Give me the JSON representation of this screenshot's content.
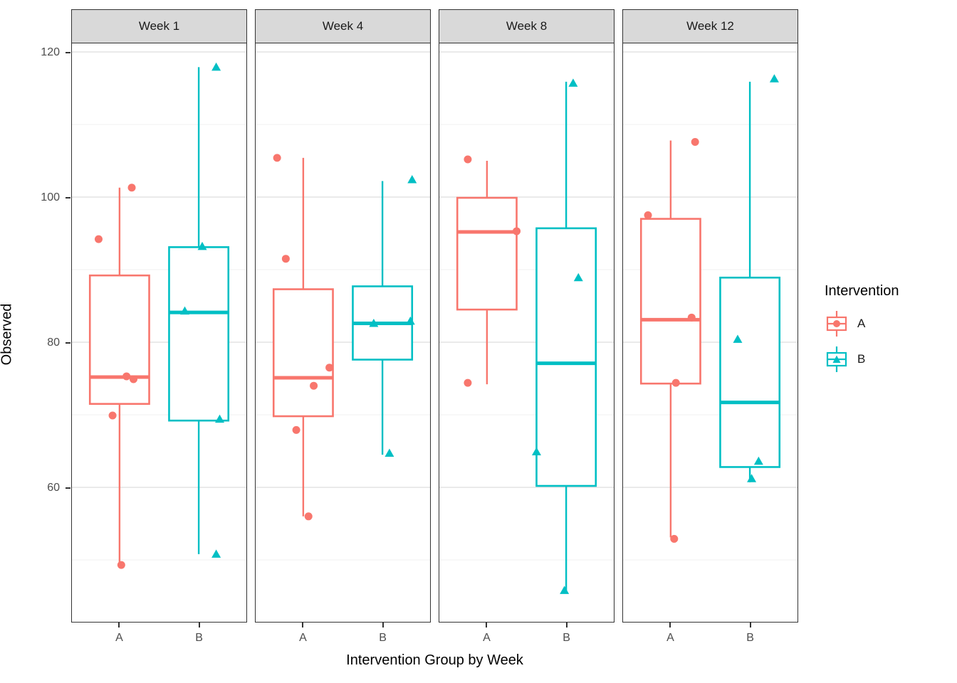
{
  "y_axis": {
    "label": "Observed",
    "ticks": [
      60,
      80,
      100,
      120
    ],
    "minor_ticks": [
      50,
      70,
      90,
      110
    ],
    "range": [
      41.4,
      121.2
    ]
  },
  "x_axis": {
    "label": "Intervention Group by Week",
    "group_labels": [
      "A",
      "B"
    ]
  },
  "legend": {
    "title": "Intervention",
    "position": "right",
    "items": [
      {
        "label": "A",
        "color": "#F8766D",
        "marker": "circle"
      },
      {
        "label": "B",
        "color": "#00BFC4",
        "marker": "triangle"
      }
    ]
  },
  "colors": {
    "group_a": "#F8766D",
    "group_b": "#00BFC4",
    "strip_bg": "#d9d9d9",
    "panel_border": "#333333",
    "grid_major": "#e3e3e3",
    "grid_minor": "#f0f0f0",
    "tick_text": "#4d4d4d"
  },
  "chart_data": {
    "type": "boxplot-jitter-faceted",
    "facet_labels": [
      "Week 1",
      "Week 4",
      "Week 8",
      "Week 12"
    ],
    "facets": [
      {
        "label": "Week 1",
        "groups": [
          {
            "name": "A",
            "box": {
              "min": 49.3,
              "q1": 71.5,
              "median": 75.2,
              "q3": 89.2,
              "max": 101.3
            },
            "points": [
              {
                "v": 101.3,
                "dx": 0.07
              },
              {
                "v": 94.2,
                "dx": -0.12
              },
              {
                "v": 75.3,
                "dx": 0.04
              },
              {
                "v": 74.9,
                "dx": 0.08
              },
              {
                "v": 69.9,
                "dx": -0.04
              },
              {
                "v": 49.3,
                "dx": 0.01
              }
            ]
          },
          {
            "name": "B",
            "box": {
              "min": 50.8,
              "q1": 69.2,
              "median": 84.1,
              "q3": 93.1,
              "max": 117.9
            },
            "points": [
              {
                "v": 117.9,
                "dx": 0.1
              },
              {
                "v": 93.2,
                "dx": 0.02
              },
              {
                "v": 84.3,
                "dx": -0.08
              },
              {
                "v": 69.4,
                "dx": 0.12
              },
              {
                "v": 50.8,
                "dx": 0.1
              }
            ]
          }
        ]
      },
      {
        "label": "Week 4",
        "groups": [
          {
            "name": "A",
            "box": {
              "min": 56.0,
              "q1": 69.8,
              "median": 75.1,
              "q3": 87.3,
              "max": 105.4
            },
            "points": [
              {
                "v": 105.4,
                "dx": -0.15
              },
              {
                "v": 91.5,
                "dx": -0.1
              },
              {
                "v": 76.5,
                "dx": 0.15
              },
              {
                "v": 74.0,
                "dx": 0.06
              },
              {
                "v": 67.9,
                "dx": -0.04
              },
              {
                "v": 56.0,
                "dx": 0.03
              }
            ]
          },
          {
            "name": "B",
            "box": {
              "min": 64.5,
              "q1": 77.6,
              "median": 82.6,
              "q3": 87.7,
              "max": 102.2
            },
            "points": [
              {
                "v": 102.4,
                "dx": 0.17
              },
              {
                "v": 82.9,
                "dx": 0.16
              },
              {
                "v": 82.6,
                "dx": -0.05
              },
              {
                "v": 64.7,
                "dx": 0.04
              }
            ]
          }
        ]
      },
      {
        "label": "Week 8",
        "groups": [
          {
            "name": "A",
            "box": {
              "min": 74.2,
              "q1": 84.5,
              "median": 95.2,
              "q3": 99.9,
              "max": 105.0
            },
            "points": [
              {
                "v": 105.2,
                "dx": -0.11
              },
              {
                "v": 95.3,
                "dx": 0.17
              },
              {
                "v": 74.4,
                "dx": -0.11
              }
            ]
          },
          {
            "name": "B",
            "box": {
              "min": 45.6,
              "q1": 60.2,
              "median": 77.1,
              "q3": 95.7,
              "max": 115.9
            },
            "points": [
              {
                "v": 115.7,
                "dx": 0.04
              },
              {
                "v": 88.9,
                "dx": 0.07
              },
              {
                "v": 64.9,
                "dx": -0.17
              },
              {
                "v": 45.8,
                "dx": -0.01
              }
            ]
          }
        ]
      },
      {
        "label": "Week 12",
        "groups": [
          {
            "name": "A",
            "box": {
              "min": 53.1,
              "q1": 74.3,
              "median": 83.1,
              "q3": 97.0,
              "max": 107.8
            },
            "points": [
              {
                "v": 107.6,
                "dx": 0.14
              },
              {
                "v": 97.5,
                "dx": -0.13
              },
              {
                "v": 83.4,
                "dx": 0.12
              },
              {
                "v": 74.4,
                "dx": 0.03
              },
              {
                "v": 52.9,
                "dx": 0.02
              }
            ]
          },
          {
            "name": "B",
            "box": {
              "min": 60.7,
              "q1": 62.8,
              "median": 71.7,
              "q3": 88.9,
              "max": 115.9
            },
            "points": [
              {
                "v": 116.3,
                "dx": 0.14
              },
              {
                "v": 80.4,
                "dx": -0.07
              },
              {
                "v": 63.6,
                "dx": 0.05
              },
              {
                "v": 61.2,
                "dx": 0.01
              }
            ]
          }
        ]
      }
    ],
    "group_positions": {
      "A": 0.273,
      "B": 0.727
    },
    "box_width_fraction": 0.34,
    "grid": true
  }
}
